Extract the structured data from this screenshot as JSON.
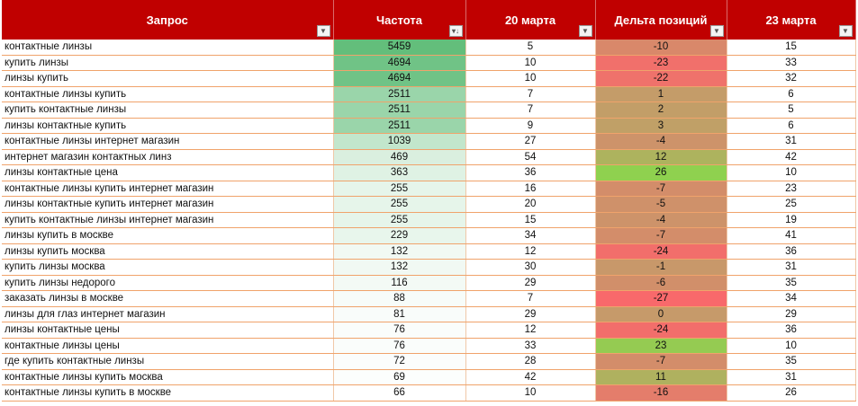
{
  "colors": {
    "header_bg": "#c00000",
    "header_text": "#ffffff",
    "row_border": "#f0a36b",
    "freq_high": "#63be7b",
    "freq_low": "#ffffff",
    "delta_negative": "#f8696b",
    "delta_positive": "#8fd14f",
    "delta_neutral": "#c69a6a"
  },
  "header": {
    "query": "Запрос",
    "frequency": "Частота",
    "march20": "20 марта",
    "delta": "Дельта позиций",
    "march23": "23 марта",
    "filter_icon": "dropdown-filter-icon",
    "sort_icon": "sort-desc-filter-icon"
  },
  "rows": [
    {
      "query": "контактные линзы",
      "freq": "5459",
      "m20": "5",
      "delta": "-10",
      "m23": "15"
    },
    {
      "query": "купить линзы",
      "freq": "4694",
      "m20": "10",
      "delta": "-23",
      "m23": "33"
    },
    {
      "query": "линзы купить",
      "freq": "4694",
      "m20": "10",
      "delta": "-22",
      "m23": "32"
    },
    {
      "query": "контактные линзы купить",
      "freq": "2511",
      "m20": "7",
      "delta": "1",
      "m23": "6"
    },
    {
      "query": "купить контактные линзы",
      "freq": "2511",
      "m20": "7",
      "delta": "2",
      "m23": "5"
    },
    {
      "query": "линзы контактные купить",
      "freq": "2511",
      "m20": "9",
      "delta": "3",
      "m23": "6"
    },
    {
      "query": "контактные линзы интернет магазин",
      "freq": "1039",
      "m20": "27",
      "delta": "-4",
      "m23": "31"
    },
    {
      "query": "интернет магазин контактных линз",
      "freq": "469",
      "m20": "54",
      "delta": "12",
      "m23": "42"
    },
    {
      "query": "линзы контактные цена",
      "freq": "363",
      "m20": "36",
      "delta": "26",
      "m23": "10"
    },
    {
      "query": "контактные линзы купить интернет магазин",
      "freq": "255",
      "m20": "16",
      "delta": "-7",
      "m23": "23"
    },
    {
      "query": "линзы контактные купить интернет магазин",
      "freq": "255",
      "m20": "20",
      "delta": "-5",
      "m23": "25"
    },
    {
      "query": "купить контактные линзы интернет магазин",
      "freq": "255",
      "m20": "15",
      "delta": "-4",
      "m23": "19"
    },
    {
      "query": "линзы купить в москве",
      "freq": "229",
      "m20": "34",
      "delta": "-7",
      "m23": "41"
    },
    {
      "query": "линзы купить москва",
      "freq": "132",
      "m20": "12",
      "delta": "-24",
      "m23": "36"
    },
    {
      "query": "купить линзы москва",
      "freq": "132",
      "m20": "30",
      "delta": "-1",
      "m23": "31"
    },
    {
      "query": "купить линзы недорого",
      "freq": "116",
      "m20": "29",
      "delta": "-6",
      "m23": "35"
    },
    {
      "query": "заказать линзы в москве",
      "freq": "88",
      "m20": "7",
      "delta": "-27",
      "m23": "34"
    },
    {
      "query": "линзы для глаз интернет магазин",
      "freq": "81",
      "m20": "29",
      "delta": "0",
      "m23": "29"
    },
    {
      "query": "линзы контактные цены",
      "freq": "76",
      "m20": "12",
      "delta": "-24",
      "m23": "36"
    },
    {
      "query": "контактные линзы цены",
      "freq": "76",
      "m20": "33",
      "delta": "23",
      "m23": "10"
    },
    {
      "query": "где купить контактные линзы",
      "freq": "72",
      "m20": "28",
      "delta": "-7",
      "m23": "35"
    },
    {
      "query": "контактные линзы купить москва",
      "freq": "69",
      "m20": "42",
      "delta": "11",
      "m23": "31"
    },
    {
      "query": "контактные линзы купить в москве",
      "freq": "66",
      "m20": "10",
      "delta": "-16",
      "m23": "26"
    }
  ]
}
